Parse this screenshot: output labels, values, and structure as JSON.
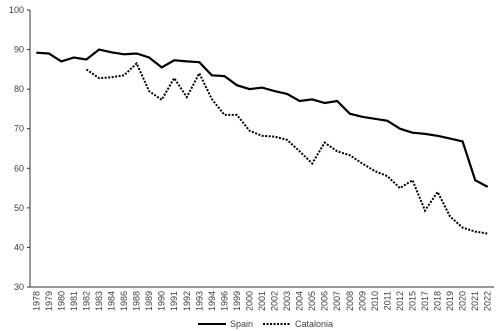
{
  "chart_data": {
    "type": "line",
    "categories": [
      "1978",
      "1979",
      "1980",
      "1981",
      "1982",
      "1983",
      "1984",
      "1986",
      "1988",
      "1989",
      "1990",
      "1991",
      "1992",
      "1993",
      "1994",
      "1996",
      "1999",
      "2000",
      "2001",
      "2002",
      "2003",
      "2004",
      "2005",
      "2006",
      "2007",
      "2008",
      "2009",
      "2010",
      "2011",
      "2012",
      "2015",
      "2017",
      "2018",
      "2019",
      "2020",
      "2021",
      "2022"
    ],
    "series": [
      {
        "name": "Spain",
        "color": "#000000",
        "dash": "solid",
        "values": [
          89.2,
          89,
          87,
          88,
          87.5,
          90,
          89.3,
          88.8,
          89,
          88,
          85.5,
          87.3,
          87,
          86.8,
          83.5,
          83.3,
          81,
          80,
          80.4,
          79.5,
          78.8,
          77,
          77.4,
          76.5,
          77,
          73.8,
          73,
          72.5,
          72,
          70,
          69,
          68.7,
          68.2,
          67.5,
          66.8,
          57,
          55.3
        ]
      },
      {
        "name": "Catalonia",
        "color": "#000000",
        "dash": "dotted",
        "values": [
          null,
          null,
          null,
          null,
          85,
          82.8,
          83,
          83.5,
          86.5,
          79.5,
          77.3,
          82.8,
          78,
          84,
          77.5,
          73.5,
          73.5,
          69.5,
          68.2,
          68,
          67.2,
          64.3,
          61.2,
          66.5,
          64.3,
          63.3,
          61.2,
          59.3,
          58,
          55,
          57,
          49.3,
          54,
          47.8,
          45,
          44,
          43.5
        ]
      }
    ],
    "ylim": [
      30,
      100
    ],
    "yticks": [
      30,
      40,
      50,
      60,
      70,
      80,
      90,
      100
    ]
  }
}
